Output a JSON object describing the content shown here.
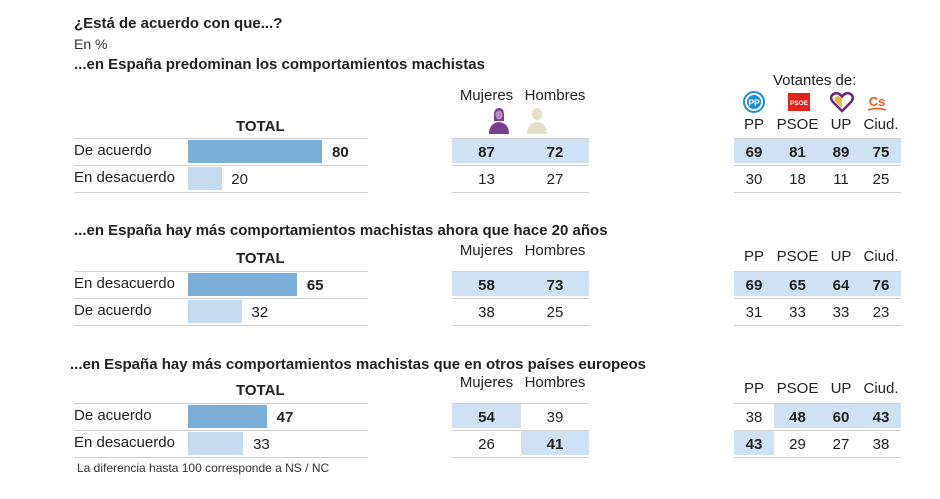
{
  "title": "¿Está de acuerdo con que...?",
  "units": "En %",
  "footnote": "La diferencia hasta 100 corresponde a NS / NC",
  "party_header": "Votantes de:",
  "colors": {
    "bar_dark": "#7bafd7",
    "bar_light": "#c6dcee",
    "highlight": "#cfe1f2",
    "women_icon": "#7a3f8f",
    "men_icon": "#e6dfcc",
    "pp": "#1c8fd6",
    "psoe": "#e2231a",
    "up": "#6b2b78",
    "ciud": "#ee5a24"
  },
  "chart_data": [
    {
      "type": "table",
      "title": "...en España predominan los comportamientos machistas",
      "total_label": "TOTAL",
      "gender_headers": [
        "Mujeres",
        "Hombres"
      ],
      "party_headers": [
        "PP",
        "PSOE",
        "UP",
        "Ciud."
      ],
      "rows": [
        {
          "label": "De acuerdo",
          "total": 80,
          "gender": [
            87,
            72
          ],
          "parties": [
            69,
            81,
            89,
            75
          ],
          "gender_hl": [
            true,
            true
          ],
          "parties_hl": [
            true,
            true,
            true,
            true
          ],
          "bar": "dark"
        },
        {
          "label": "En desacuerdo",
          "total": 20,
          "gender": [
            13,
            27
          ],
          "parties": [
            30,
            18,
            11,
            25
          ],
          "gender_hl": [
            false,
            false
          ],
          "parties_hl": [
            false,
            false,
            false,
            false
          ],
          "bar": "light"
        }
      ]
    },
    {
      "type": "table",
      "title": "...en España hay más comportamientos machistas ahora que hace 20 años",
      "total_label": "TOTAL",
      "gender_headers": [
        "Mujeres",
        "Hombres"
      ],
      "party_headers": [
        "PP",
        "PSOE",
        "UP",
        "Ciud."
      ],
      "rows": [
        {
          "label": "En desacuerdo",
          "total": 65,
          "gender": [
            58,
            73
          ],
          "parties": [
            69,
            65,
            64,
            76
          ],
          "gender_hl": [
            true,
            true
          ],
          "parties_hl": [
            true,
            true,
            true,
            true
          ],
          "bar": "dark"
        },
        {
          "label": "De acuerdo",
          "total": 32,
          "gender": [
            38,
            25
          ],
          "parties": [
            31,
            33,
            33,
            23
          ],
          "gender_hl": [
            false,
            false
          ],
          "parties_hl": [
            false,
            false,
            false,
            false
          ],
          "bar": "light"
        }
      ]
    },
    {
      "type": "table",
      "title": "...en España hay más comportamientos machistas que en otros países europeos",
      "total_label": "TOTAL",
      "gender_headers": [
        "Mujeres",
        "Hombres"
      ],
      "party_headers": [
        "PP",
        "PSOE",
        "UP",
        "Ciud."
      ],
      "rows": [
        {
          "label": "De acuerdo",
          "total": 47,
          "gender": [
            54,
            39
          ],
          "parties": [
            38,
            48,
            60,
            43
          ],
          "gender_hl": [
            true,
            false
          ],
          "parties_hl": [
            false,
            true,
            true,
            true
          ],
          "bar": "dark"
        },
        {
          "label": "En desacuerdo",
          "total": 33,
          "gender": [
            26,
            41
          ],
          "parties": [
            43,
            29,
            27,
            38
          ],
          "gender_hl": [
            false,
            true
          ],
          "parties_hl": [
            true,
            false,
            false,
            false
          ],
          "bar": "light"
        }
      ]
    }
  ]
}
